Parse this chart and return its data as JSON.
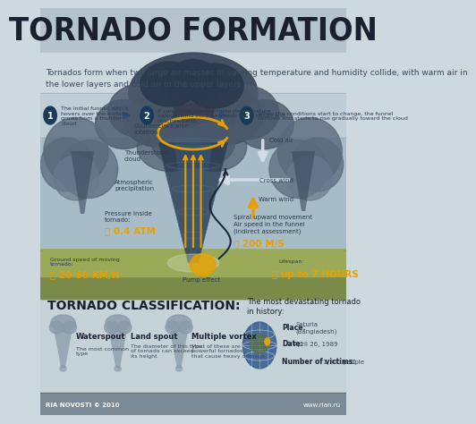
{
  "title": "TORNADO FORMATION",
  "subtitle1": "Tornados form when two large air masses of varying temperature and humidity collide, with warm air in",
  "subtitle2": "the lower layers and cold air in the upper layers",
  "steps": [
    {
      "num": "1",
      "text": "The initial funnel, which\nhovers over the surface,\ngrows from a thunder\ncloud"
    },
    {
      "num": "2",
      "text": "If conditions are favorable (temperature\nswings, wind etc.) a tornado takes shape and\nreaches Earth"
    },
    {
      "num": "3",
      "text": "When the conditions start to change, the funnel\nnarrows and starts to rise gradually toward the cloud"
    }
  ],
  "classification_title": "TORNADO CLASSIFICATION:",
  "classification_items": [
    {
      "name": "Waterspout",
      "desc": "The most common\ntype"
    },
    {
      "name": "Land spout",
      "desc": "The diameter of this type\nof tornado can exceed\nits height"
    },
    {
      "name": "Multiple vortex",
      "desc": "Most of these are\npowerful tornados\nthat cause heavy damage"
    }
  ],
  "history_title": "The most devastating tornado\nin history:",
  "history_items": [
    {
      "label": "Place:",
      "value": "Saturia\n(Bangladesh)"
    },
    {
      "label": "Date:",
      "value": "April 26, 1989"
    },
    {
      "label": "Number of victims:",
      "value": "1,300 people"
    }
  ],
  "footer_left": "RIA NOVOSTI © 2010",
  "footer_right": "www.rian.ru",
  "col_title_bg": "#b5c3cd",
  "col_subtitle_bg": "#cdd8df",
  "col_steps_bg": "#bfcdd6",
  "col_sky": "#a8bcc8",
  "col_ground_top": "#9aaa60",
  "col_ground_bot": "#7a8a40",
  "col_classif_bg": "#c5d2d8",
  "col_footer_bg": "#7a8a96",
  "col_cloud_dark": "#3a4a5c",
  "col_cloud_mid": "#4a5a6c",
  "col_cloud_light": "#6a7a8c",
  "col_tornado": "#2a3a4c",
  "col_yellow": "#e8a000",
  "col_white_arrow": "#d0dce8",
  "col_text_dark": "#2a3040",
  "col_text_mid": "#3a4a5a",
  "col_step_circle": "#1a3a5a"
}
